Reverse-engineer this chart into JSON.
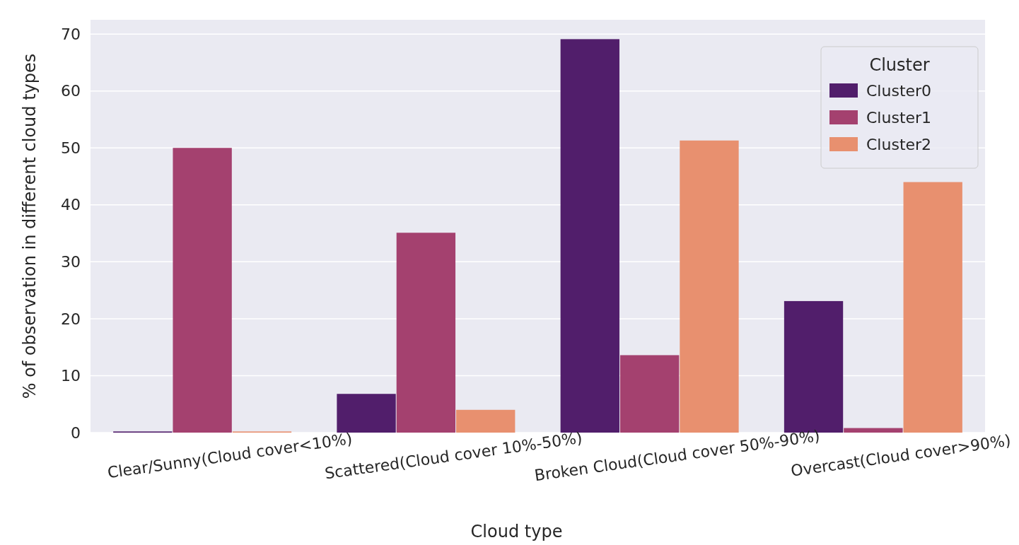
{
  "chart_data": {
    "type": "bar",
    "xlabel": "Cloud type",
    "ylabel": "% of observation in different cloud types",
    "legend_title": "Cluster",
    "categories": [
      "Clear/Sunny(Cloud cover<10%)",
      "Scattered(Cloud cover 10%-50%)",
      "Broken Cloud(Cloud cover 50%-90%)",
      "Overcast(Cloud cover>90%)"
    ],
    "series": [
      {
        "name": "Cluster0",
        "color": "#511e6b",
        "values": [
          0.2,
          6.8,
          69.1,
          23.1
        ]
      },
      {
        "name": "Cluster1",
        "color": "#a4416f",
        "values": [
          50.0,
          35.1,
          13.6,
          0.8
        ]
      },
      {
        "name": "Cluster2",
        "color": "#e8906f",
        "values": [
          0.2,
          4.0,
          51.3,
          44.0
        ]
      }
    ],
    "ylim": [
      0,
      72.5
    ],
    "yticks": [
      0,
      10,
      20,
      30,
      40,
      50,
      60,
      70
    ],
    "grid": "y",
    "legend": "top right"
  }
}
